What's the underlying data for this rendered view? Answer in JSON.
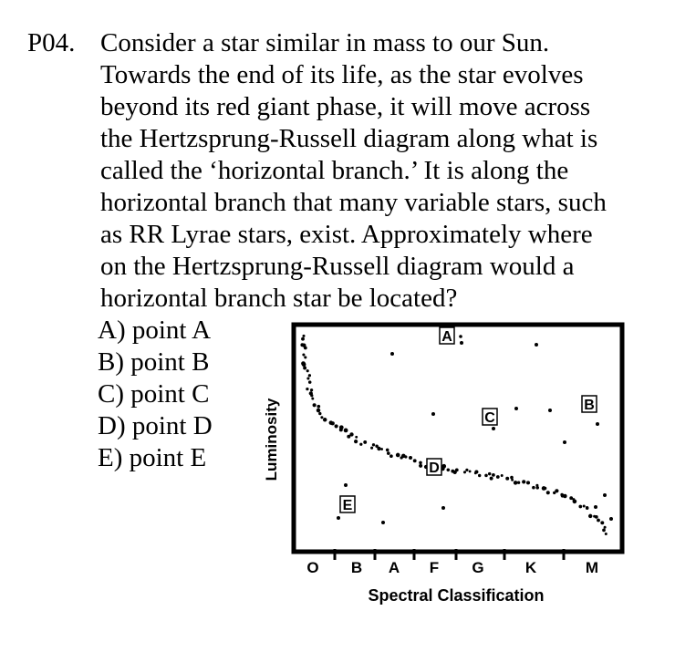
{
  "question": {
    "number": "P04.",
    "lines": [
      "Consider a star similar in mass to our Sun.",
      "Towards the end of its life, as the star evolves",
      "beyond its red giant phase, it will move across",
      "the Hertzsprung-Russell diagram along what is",
      "called the ‘horizontal branch.’  It is along the",
      "horizontal branch that many variable stars, such",
      "as RR Lyrae stars, exist.  Approximately where",
      "on the Hertzsprung-Russell diagram would a",
      "horizontal branch star be located?"
    ]
  },
  "choices": [
    "A) point A",
    "B) point B",
    "C) point C",
    "D) point D",
    "E) point E"
  ],
  "diagram": {
    "ylabel": "Luminosity",
    "xlabel": "Spectral Classification",
    "spectral_classes": [
      "O",
      "B",
      "A",
      "F",
      "G",
      "K",
      "M"
    ],
    "points": [
      {
        "label": "A"
      },
      {
        "label": "B"
      },
      {
        "label": "C"
      },
      {
        "label": "D"
      },
      {
        "label": "E"
      }
    ]
  }
}
